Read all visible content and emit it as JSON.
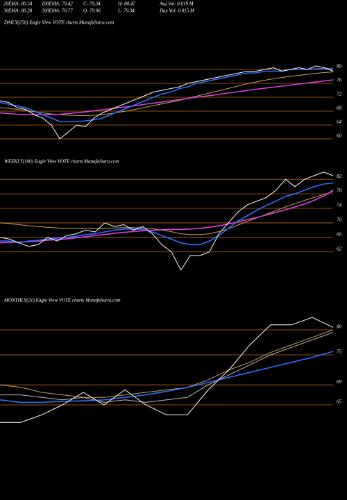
{
  "header": {
    "stats": [
      "20EMA: 80.54",
      "100EMA: 79.42",
      "C: 79.34",
      "H: 80.47",
      "Avg Vol: 0.019 M",
      "30EMA: 80.38",
      "200EMA: 76.77",
      "O: 79.96",
      "L: 79.34",
      "Day Vol: 0.015 M"
    ]
  },
  "chart_data": [
    {
      "type": "line",
      "title": "DAILY(250) Eagle  View  VOTE charts MunafaSutra.com",
      "ylim": [
        57,
        94
      ],
      "yticks": [
        80,
        76,
        72,
        68,
        64,
        60
      ],
      "grid": true,
      "grid_color": "#c0641e",
      "series": [
        {
          "color": "#c8a060",
          "values": [
            69,
            68.8,
            68.5,
            68.2,
            67.8,
            67.5,
            67.2,
            67,
            66.8,
            66.7,
            66.7,
            66.8,
            67,
            67.3,
            67.7,
            68.1,
            68.6,
            69.1,
            69.6,
            70.1,
            70.6,
            71.1,
            71.7,
            72.3,
            72.9,
            73.5,
            74.1,
            74.7,
            75.3,
            75.9,
            76.4,
            76.9,
            77.3,
            77.7,
            78,
            78.3,
            78.6,
            78.9,
            79.1,
            79.3
          ]
        },
        {
          "color": "#e040e0",
          "values": [
            67.5,
            67.3,
            67.1,
            67,
            67,
            67,
            67,
            67.1,
            67.3,
            67.5,
            67.8,
            68.1,
            68.4,
            68.7,
            69,
            69.3,
            69.6,
            70,
            70.3,
            70.6,
            71,
            71.3,
            71.7,
            72,
            72.3,
            72.6,
            73,
            73.3,
            73.6,
            74,
            74.3,
            74.6,
            74.9,
            75.2,
            75.5,
            75.8,
            76.1,
            76.4,
            76.7,
            77
          ]
        },
        {
          "color": "#2f6fff",
          "values": [
            70.5,
            70,
            69.5,
            69,
            68,
            67,
            66,
            65,
            65,
            65,
            65.2,
            65.5,
            66,
            67,
            68,
            69,
            70,
            71,
            72,
            73,
            73.5,
            74.5,
            75,
            76,
            76.5,
            77,
            77.5,
            78,
            78.5,
            79,
            79,
            79.5,
            79.5,
            79.5,
            80,
            80,
            80,
            80.2,
            80.3,
            80.2
          ]
        },
        {
          "color": "#ffffff",
          "values": [
            71,
            70.5,
            69,
            68.5,
            67,
            66,
            64,
            60,
            62,
            64,
            63.5,
            66,
            67.5,
            68.5,
            69.5,
            70.5,
            71.5,
            72.5,
            73.5,
            74,
            74.5,
            75,
            76,
            76.5,
            77,
            77.5,
            78,
            78.5,
            79,
            79.5,
            79.5,
            80,
            80.5,
            79.5,
            80,
            80.5,
            80,
            81,
            80.5,
            79.5
          ]
        }
      ]
    },
    {
      "type": "line",
      "title": "WEEKLY(100) Eagle  View  VOTE charts MunafaSutra.com",
      "ylim": [
        52,
        87.4
      ],
      "yticks": [
        82,
        78,
        74,
        70,
        66,
        62
      ],
      "grid": true,
      "grid_color": "#c0641e",
      "series": [
        {
          "color": "#c8a060",
          "values": [
            70,
            69.8,
            69.5,
            69.2,
            69,
            68.8,
            68.6,
            68.5,
            68.4,
            68.4,
            68.4,
            68.5,
            68.6,
            68.7,
            68.7,
            68.6,
            68.4,
            68,
            67.6,
            67,
            66.8,
            66.8,
            67,
            67.6,
            68.4,
            69.4,
            70.4,
            71.4,
            72.4,
            73.4,
            74.4,
            75.3,
            76.2,
            77,
            77.8,
            78.6
          ]
        },
        {
          "color": "#e040e0",
          "values": [
            64.5,
            64.6,
            64.7,
            64.8,
            65,
            65.2,
            65.4,
            65.6,
            65.9,
            66.2,
            66.5,
            66.8,
            67.1,
            67.4,
            67.6,
            67.8,
            68,
            68.1,
            68.2,
            68.2,
            68.3,
            68.5,
            68.8,
            69.2,
            69.7,
            70.3,
            70.9,
            71.5,
            72.2,
            72.9,
            73.6,
            74.4,
            75.2,
            76.2,
            77.4,
            79
          ]
        },
        {
          "color": "#2f6fff",
          "values": [
            65,
            65,
            64.5,
            65,
            65.2,
            65.5,
            65.8,
            66,
            66.3,
            66.8,
            67,
            67.5,
            68,
            68.3,
            68.3,
            68.2,
            67.5,
            66.5,
            65.5,
            64.5,
            64,
            64,
            65,
            66.5,
            68.5,
            70.5,
            72,
            73.5,
            74.8,
            76,
            77.3,
            78,
            79,
            80,
            80.7,
            81
          ]
        },
        {
          "color": "#ffffff",
          "values": [
            66,
            65.5,
            64.5,
            63.5,
            64,
            66,
            65,
            66.5,
            67,
            68,
            67.5,
            70,
            69,
            69.5,
            68,
            69,
            67,
            64,
            62,
            57,
            61,
            61,
            62,
            67,
            70,
            73,
            75,
            76,
            77,
            79,
            82,
            80,
            82,
            83,
            84,
            83
          ]
        }
      ]
    },
    {
      "type": "line",
      "title": "MONTHLY(21) Eagle  View  VOTE charts MunafaSutra.com",
      "ylim": [
        61.25,
        86.25
      ],
      "yticks": [
        80,
        75,
        69,
        65
      ],
      "grid": true,
      "grid_color": "#c0641e",
      "series": [
        {
          "color": "#c8a060",
          "values": [
            69,
            68.5,
            67.5,
            67,
            66.5,
            66.5,
            67,
            67.5,
            68,
            68.5,
            70,
            72,
            73.5,
            75.5,
            77,
            78.5,
            80
          ]
        },
        {
          "color": "#bbbbbb",
          "values": [
            67,
            67,
            66.5,
            66,
            66.5,
            65.5,
            66,
            65.5,
            66,
            66.5,
            69,
            71,
            73,
            75,
            76.5,
            78,
            79.5
          ]
        },
        {
          "color": "#2f6fff",
          "values": [
            66,
            65.5,
            65.5,
            65.7,
            65.8,
            66,
            66.5,
            67,
            67.7,
            68.5,
            69.5,
            70.5,
            71.5,
            72.5,
            73.5,
            74.5,
            75.7
          ]
        },
        {
          "color": "#ffffff",
          "values": [
            61.5,
            61.5,
            63,
            65,
            67.5,
            65,
            68,
            65,
            63,
            63,
            68,
            72,
            77,
            81,
            81,
            82.5,
            80.5
          ]
        }
      ]
    }
  ]
}
